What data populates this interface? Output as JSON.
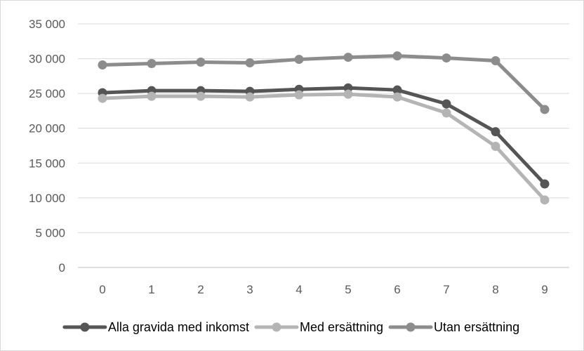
{
  "chart_data": {
    "type": "line",
    "title": "",
    "xlabel": "",
    "ylabel": "",
    "categories": [
      "0",
      "1",
      "2",
      "3",
      "4",
      "5",
      "6",
      "7",
      "8",
      "9"
    ],
    "ylim": [
      0,
      35000
    ],
    "yticks": [
      0,
      5000,
      10000,
      15000,
      20000,
      25000,
      30000,
      35000
    ],
    "ytick_labels": [
      "0",
      "5 000",
      "10 000",
      "15 000",
      "20 000",
      "25 000",
      "30 000",
      "35 000"
    ],
    "grid": true,
    "legend_position": "bottom",
    "series": [
      {
        "name": "Alla gravida med inkomst",
        "color": "#555555",
        "values": [
          25100,
          25400,
          25400,
          25300,
          25600,
          25800,
          25500,
          23500,
          19500,
          12000
        ]
      },
      {
        "name": "Med ersättning",
        "color": "#b4b4b4",
        "values": [
          24300,
          24600,
          24600,
          24500,
          24800,
          24900,
          24500,
          22200,
          17400,
          9700
        ]
      },
      {
        "name": "Utan ersättning",
        "color": "#8c8c8c",
        "values": [
          29100,
          29300,
          29500,
          29400,
          29900,
          30200,
          30400,
          30100,
          29700,
          22700
        ]
      }
    ]
  }
}
